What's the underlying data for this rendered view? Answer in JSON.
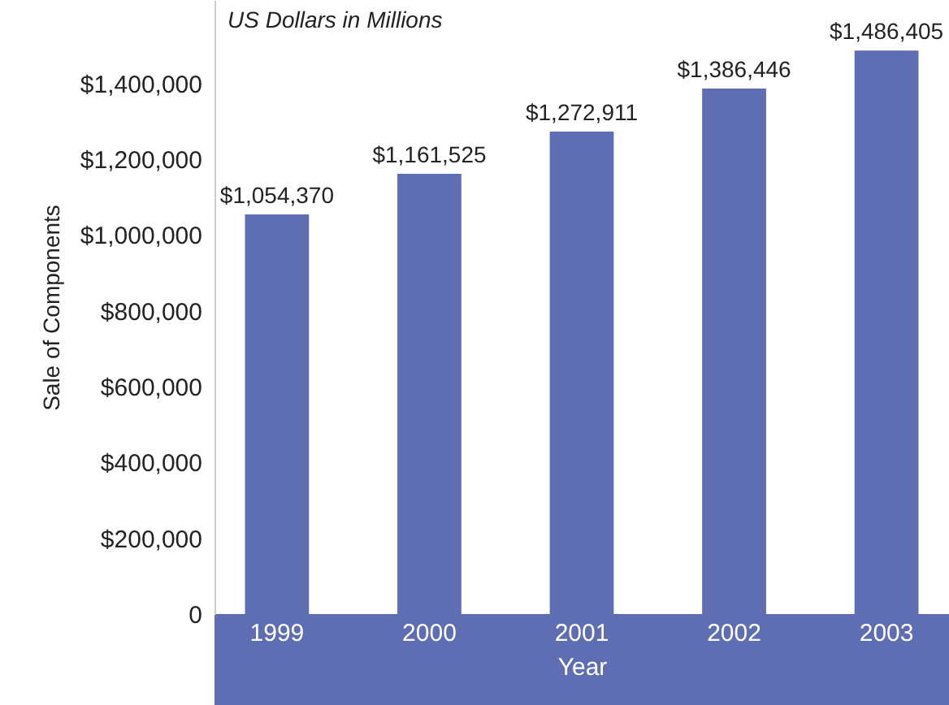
{
  "chart_data": {
    "type": "bar",
    "categories": [
      "1999",
      "2000",
      "2001",
      "2002",
      "2003"
    ],
    "values": [
      1054370,
      1161525,
      1272911,
      1386446,
      1486405
    ],
    "value_labels": [
      "$1,054,370",
      "$1,161,525",
      "$1,272,911",
      "$1,386,446",
      "$1,486,405"
    ],
    "color": "#5f6db3",
    "xlabel": "Year",
    "ylabel": "Sale of Components",
    "ylim": [
      0,
      1620000
    ],
    "yticks": [
      {
        "value": 0,
        "label": "0"
      },
      {
        "value": 200000,
        "label": "$200,000"
      },
      {
        "value": 400000,
        "label": "$400,000"
      },
      {
        "value": 600000,
        "label": "$600,000"
      },
      {
        "value": 800000,
        "label": "$800,000"
      },
      {
        "value": 1000000,
        "label": "$1,000,000"
      },
      {
        "value": 1200000,
        "label": "$1,200,000"
      },
      {
        "value": 1400000,
        "label": "$1,400,000"
      }
    ],
    "annotations": [
      "US Dollars in Millions"
    ],
    "grid": false
  }
}
